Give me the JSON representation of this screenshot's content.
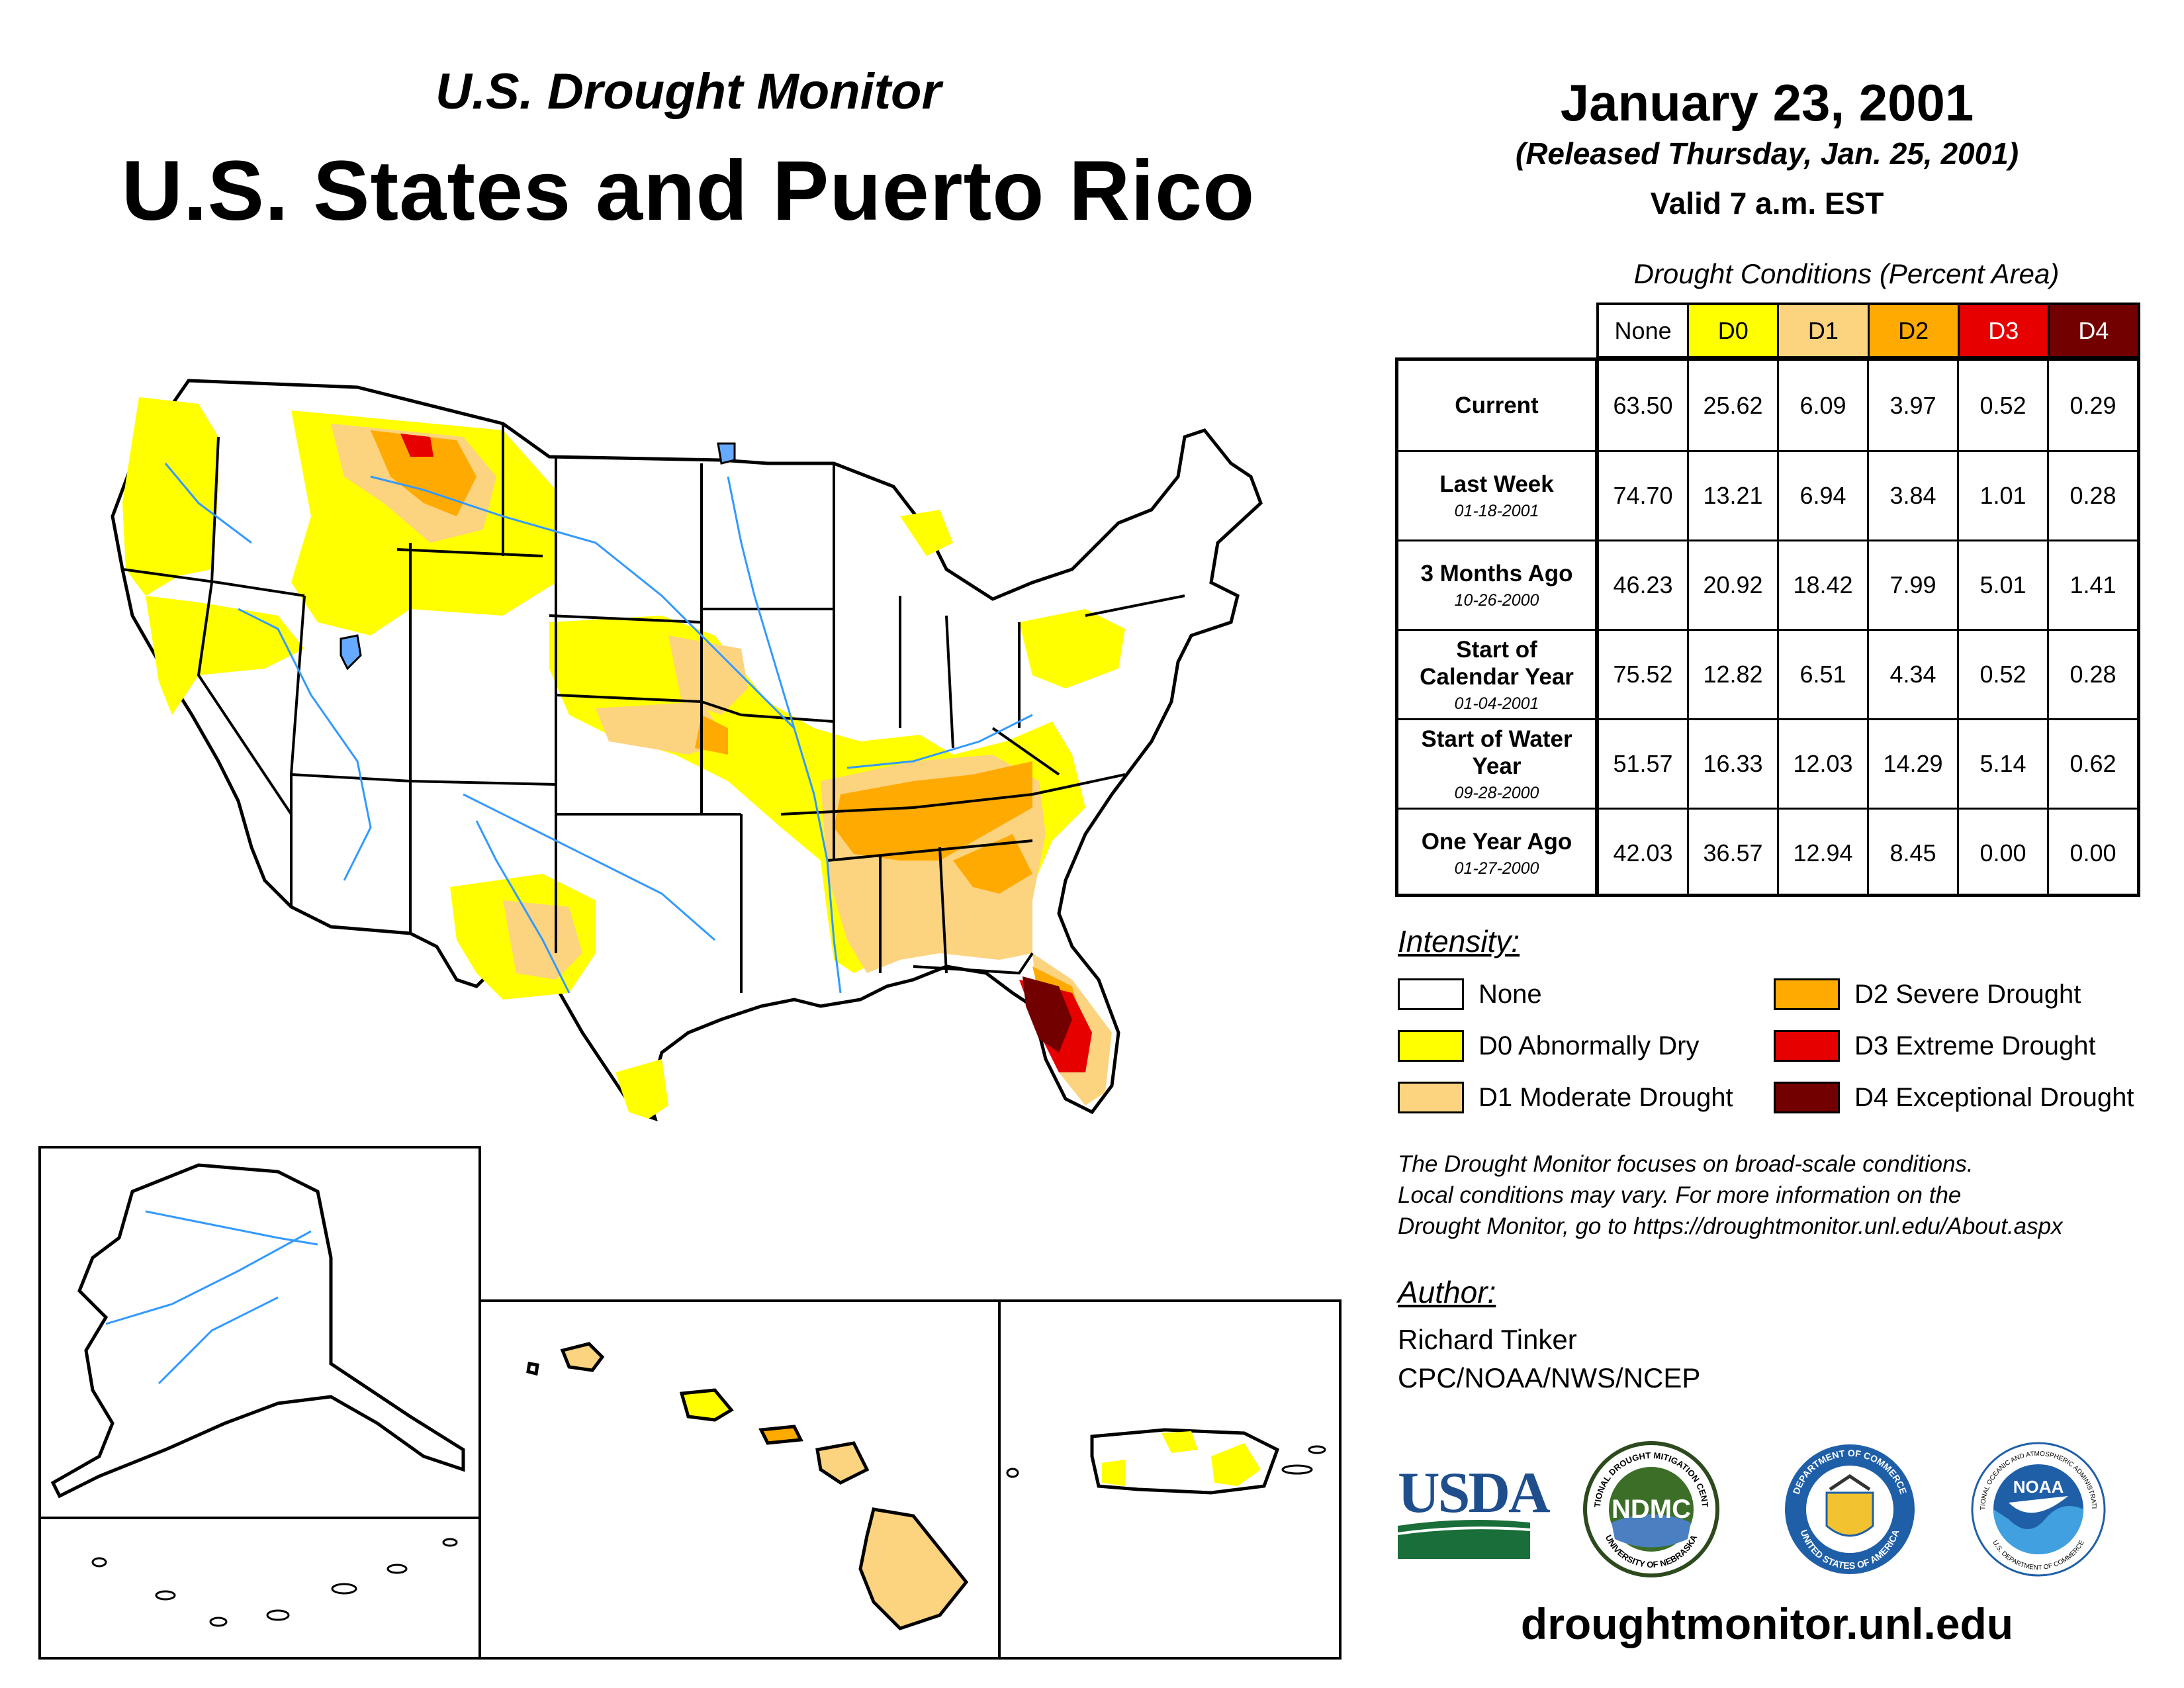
{
  "header": {
    "super_title": "U.S. Drought Monitor",
    "main_title": "U.S. States and Puerto Rico",
    "date": "January 23, 2001",
    "released": "(Released Thursday, Jan. 25, 2001)",
    "valid": "Valid 7 a.m. EST"
  },
  "table": {
    "caption": "Drought Conditions (Percent Area)",
    "columns": [
      "None",
      "D0",
      "D1",
      "D2",
      "D3",
      "D4"
    ],
    "column_colors": [
      "#ffffff",
      "#ffff00",
      "#fcd37f",
      "#ffaa00",
      "#e60000",
      "#730000"
    ],
    "rows": [
      {
        "label": "Current",
        "date": "",
        "values": [
          "63.50",
          "25.62",
          "6.09",
          "3.97",
          "0.52",
          "0.29"
        ]
      },
      {
        "label": "Last Week",
        "date": "01-18-2001",
        "values": [
          "74.70",
          "13.21",
          "6.94",
          "3.84",
          "1.01",
          "0.28"
        ]
      },
      {
        "label": "3 Months Ago",
        "date": "10-26-2000",
        "values": [
          "46.23",
          "20.92",
          "18.42",
          "7.99",
          "5.01",
          "1.41"
        ]
      },
      {
        "label": "Start of Calendar Year",
        "date": "01-04-2001",
        "values": [
          "75.52",
          "12.82",
          "6.51",
          "4.34",
          "0.52",
          "0.28"
        ]
      },
      {
        "label": "Start of Water Year",
        "date": "09-28-2000",
        "values": [
          "51.57",
          "16.33",
          "12.03",
          "14.29",
          "5.14",
          "0.62"
        ]
      },
      {
        "label": "One Year Ago",
        "date": "01-27-2000",
        "values": [
          "42.03",
          "36.57",
          "12.94",
          "8.45",
          "0.00",
          "0.00"
        ]
      }
    ]
  },
  "legend": {
    "title": "Intensity:",
    "items": [
      {
        "label": "None",
        "color": "#ffffff"
      },
      {
        "label": "D0 Abnormally Dry",
        "color": "#ffff00"
      },
      {
        "label": "D1 Moderate Drought",
        "color": "#fcd37f"
      },
      {
        "label": "D2 Severe Drought",
        "color": "#ffaa00"
      },
      {
        "label": "D3 Extreme Drought",
        "color": "#e60000"
      },
      {
        "label": "D4 Exceptional Drought",
        "color": "#730000"
      }
    ]
  },
  "note": {
    "line1": "The Drought Monitor focuses on broad-scale conditions.",
    "line2": "Local conditions may vary. For more information on the",
    "line3": "Drought Monitor, go to https://droughtmonitor.unl.edu/About.aspx"
  },
  "author": {
    "title": "Author:",
    "name": "Richard Tinker",
    "org": "CPC/NOAA/NWS/NCEP"
  },
  "logos": {
    "usda": "USDA",
    "ndmc": "NDMC",
    "ndmc_ring_top": "NATIONAL DROUGHT MITIGATION CENTER",
    "ndmc_ring_bottom": "UNIVERSITY OF NEBRASKA",
    "doc_ring_top": "DEPARTMENT OF COMMERCE",
    "doc_ring_bottom": "UNITED STATES OF AMERICA",
    "noaa": "NOAA",
    "noaa_ring_top": "NATIONAL OCEANIC AND ATMOSPHERIC ADMINISTRATION",
    "noaa_ring_bottom": "U.S. DEPARTMENT OF COMMERCE"
  },
  "website": "droughtmonitor.unl.edu",
  "map_colors": {
    "d0": "#ffff00",
    "d1": "#fcd37f",
    "d2": "#ffaa00",
    "d3": "#e60000",
    "d4": "#730000",
    "water": "#3399ff"
  }
}
